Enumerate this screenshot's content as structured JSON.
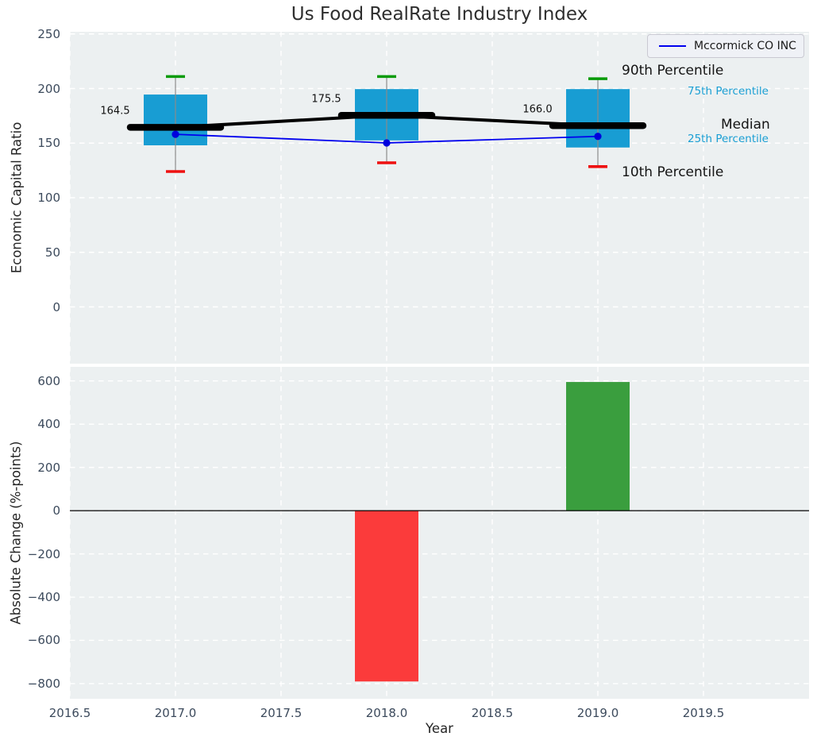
{
  "figure": {
    "title": "Us Food RealRate Industry Index"
  },
  "legend": {
    "label": "Mccormick CO INC"
  },
  "side_labels": {
    "p90": "90th Percentile",
    "p75": "75th Percentile",
    "median": "Median",
    "p25": "25th Percentile",
    "p10": "10th Percentile"
  },
  "colors": {
    "panel_bg": "#ecf0f1",
    "grid": "#ffffff",
    "tick_text": "#3c4a5c",
    "box": "#189dd3",
    "whisker": "#8a8a8a",
    "cap_high": "#089b08",
    "cap_low": "#ee1111",
    "median": "#000000",
    "company": "#0000ee",
    "company_dot": "#0000dd",
    "accent_text": "#1a9fd4",
    "bar_up": "#3a9e3e",
    "bar_down": "#fb3b3b",
    "zero_line": "#000000"
  },
  "chart_data": [
    {
      "type": "candlestick-percentiles",
      "title": "Us Food RealRate Industry Index",
      "ylabel": "Economic Capital Ratio",
      "x": [
        2017,
        2018,
        2019
      ],
      "xlim": [
        2016.5,
        2020.0
      ],
      "ylim": [
        -52,
        252
      ],
      "grid": true,
      "legend_position": "upper right",
      "series": {
        "p90": [
          211,
          211,
          209
        ],
        "p75": [
          194.5,
          199.5,
          199.5
        ],
        "median": [
          164.5,
          175.5,
          166.0
        ],
        "p25": [
          148,
          152.5,
          146
        ],
        "p10": [
          124,
          132,
          128.5
        ],
        "company": {
          "name": "Mccormick CO INC",
          "values": [
            158.1,
            150.2,
            156.2
          ]
        }
      },
      "annotations": [
        {
          "x": 2017,
          "label": "164.5"
        },
        {
          "x": 2018,
          "label": "175.5"
        },
        {
          "x": 2019,
          "label": "166.0"
        }
      ],
      "yticks": [
        {
          "v": 250,
          "label": "250"
        },
        {
          "v": 200,
          "label": "200"
        },
        {
          "v": 150,
          "label": "150"
        },
        {
          "v": 100,
          "label": "100"
        },
        {
          "v": 50,
          "label": "50"
        },
        {
          "v": 0,
          "label": "0"
        }
      ],
      "xgrid_values": [
        2016.5,
        2017,
        2017.5,
        2018,
        2018.5,
        2019,
        2019.5
      ]
    },
    {
      "type": "bar",
      "ylabel": "Absolute Change (%-points)",
      "xlabel": "Year",
      "x": [
        2018,
        2019
      ],
      "values": [
        -790,
        595
      ],
      "xlim": [
        2016.5,
        2020.0
      ],
      "ylim": [
        -870,
        665
      ],
      "grid": true,
      "zero_line": true,
      "yticks": [
        {
          "v": 600,
          "label": "600"
        },
        {
          "v": 400,
          "label": "400"
        },
        {
          "v": 200,
          "label": "200"
        },
        {
          "v": 0,
          "label": "0"
        },
        {
          "v": -200,
          "label": "−200"
        },
        {
          "v": -400,
          "label": "−400"
        },
        {
          "v": -600,
          "label": "−600"
        },
        {
          "v": -800,
          "label": "−800"
        }
      ],
      "xticks": [
        {
          "v": 2016.5,
          "label": "2016.5"
        },
        {
          "v": 2017,
          "label": "2017.0"
        },
        {
          "v": 2017.5,
          "label": "2017.5"
        },
        {
          "v": 2018,
          "label": "2018.0"
        },
        {
          "v": 2018.5,
          "label": "2018.5"
        },
        {
          "v": 2019,
          "label": "2019.0"
        },
        {
          "v": 2019.5,
          "label": "2019.5"
        }
      ],
      "xgrid_values": [
        2016.5,
        2017,
        2017.5,
        2018,
        2018.5,
        2019,
        2019.5
      ]
    }
  ]
}
